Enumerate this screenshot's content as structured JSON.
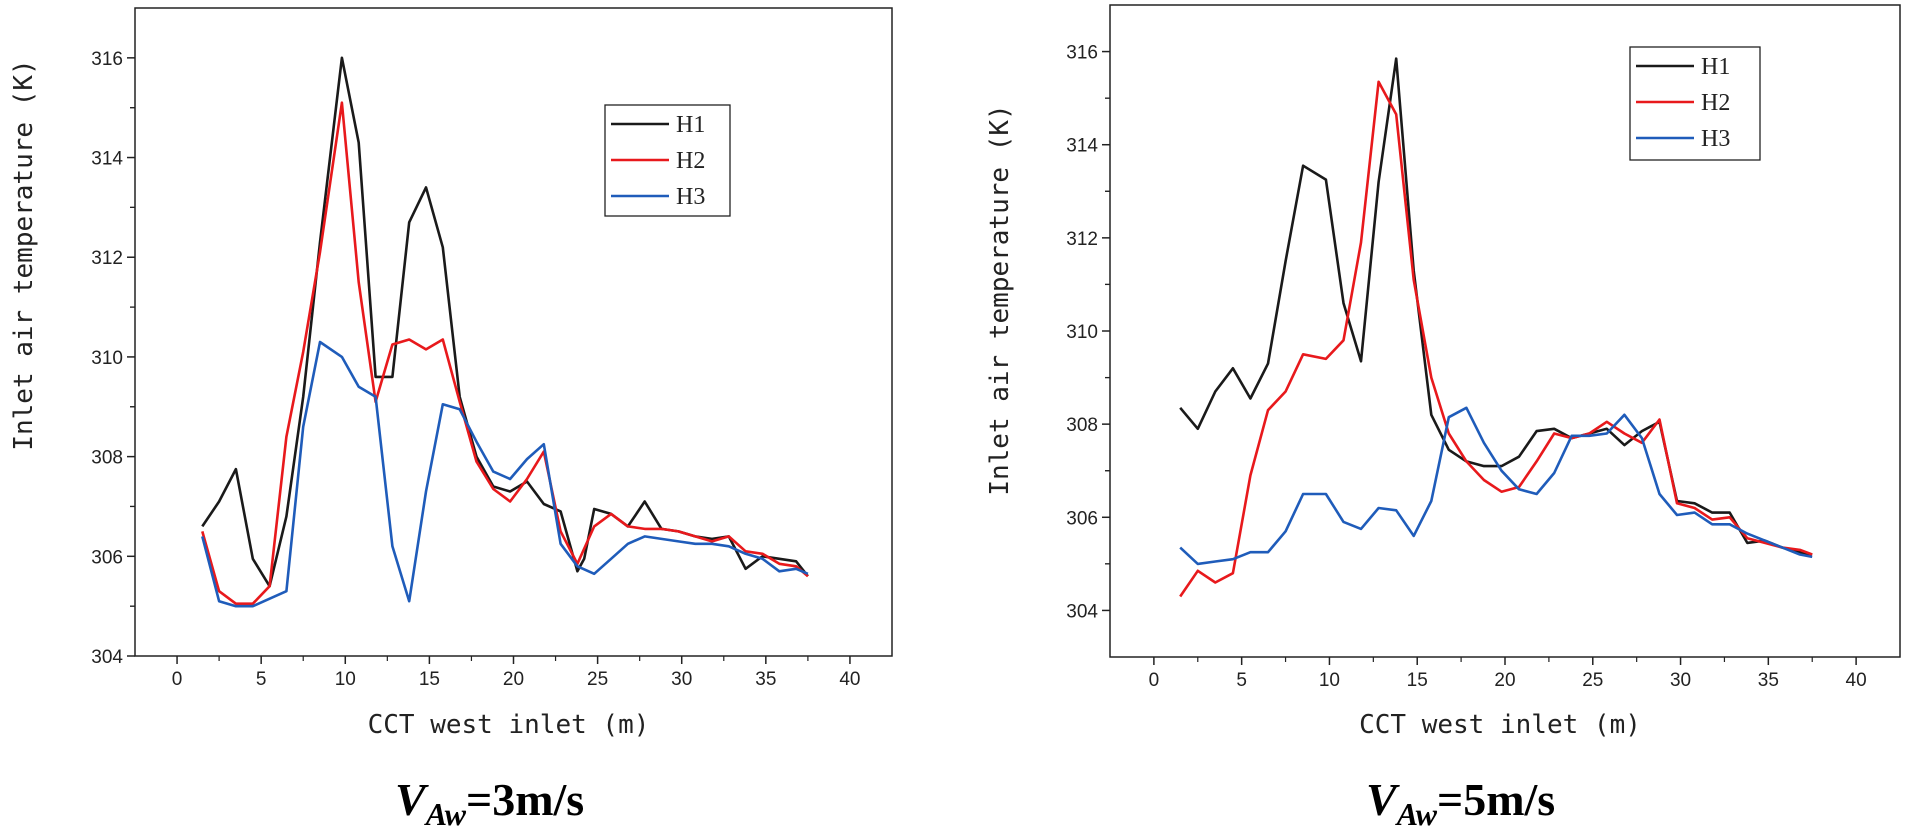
{
  "chart_data": [
    {
      "type": "line",
      "caption": {
        "var": "V",
        "sub": "Aw",
        "value": "=3m/s"
      },
      "xlabel": "CCT west inlet (m)",
      "ylabel": "Inlet air temperature (K)",
      "xlim": [
        -2.5,
        42.5
      ],
      "ylim": [
        304,
        317
      ],
      "xticks": [
        0,
        5,
        10,
        15,
        20,
        25,
        30,
        35,
        40
      ],
      "yticks": [
        304,
        306,
        308,
        310,
        312,
        314,
        316
      ],
      "legend_position": "top-right",
      "series": [
        {
          "name": "H1",
          "color": "#1a1a1a",
          "x": [
            1.5,
            2.5,
            3.5,
            4.5,
            5.5,
            6.5,
            7.5,
            8.5,
            9.8,
            10.8,
            11.8,
            12.8,
            13.8,
            14.8,
            15.8,
            16.8,
            17.8,
            18.8,
            19.8,
            20.8,
            21.8,
            22.8,
            23.8,
            24.2,
            24.8,
            25.8,
            26.8,
            27.8,
            28.8,
            29.8,
            30.8,
            31.8,
            32.8,
            33.8,
            34.8,
            35.8,
            36.8,
            37.5
          ],
          "values": [
            306.6,
            307.1,
            307.75,
            305.95,
            305.4,
            306.8,
            309.2,
            312.3,
            316.0,
            314.3,
            309.6,
            309.6,
            312.7,
            313.4,
            312.2,
            309.2,
            308.0,
            307.4,
            307.3,
            307.5,
            307.05,
            306.9,
            305.7,
            305.95,
            306.95,
            306.85,
            306.6,
            307.1,
            306.55,
            306.5,
            306.4,
            306.35,
            306.4,
            305.75,
            306.0,
            305.95,
            305.9,
            305.6
          ]
        },
        {
          "name": "H2",
          "color": "#e8191c",
          "x": [
            1.5,
            2.5,
            3.5,
            4.5,
            5.5,
            6.5,
            7.5,
            8.5,
            9.8,
            10.8,
            11.8,
            12.8,
            13.8,
            14.8,
            15.8,
            16.8,
            17.8,
            18.8,
            19.8,
            20.8,
            21.8,
            22.8,
            23.8,
            24.8,
            25.8,
            26.8,
            27.8,
            28.8,
            29.8,
            30.8,
            31.8,
            32.8,
            33.8,
            34.8,
            35.8,
            36.8,
            37.5
          ],
          "values": [
            306.5,
            305.3,
            305.05,
            305.05,
            305.4,
            308.4,
            310.1,
            312.1,
            315.1,
            311.5,
            309.1,
            310.25,
            310.35,
            310.15,
            310.35,
            309.1,
            307.9,
            307.35,
            307.1,
            307.55,
            308.1,
            306.5,
            305.85,
            306.6,
            306.85,
            306.6,
            306.55,
            306.55,
            306.5,
            306.4,
            306.3,
            306.4,
            306.1,
            306.05,
            305.85,
            305.8,
            305.6
          ]
        },
        {
          "name": "H3",
          "color": "#1f5cba",
          "x": [
            1.5,
            2.5,
            3.5,
            4.5,
            5.5,
            6.5,
            7.5,
            8.5,
            9.8,
            10.8,
            11.8,
            12.8,
            13.8,
            14.8,
            15.8,
            16.8,
            17.8,
            18.8,
            19.8,
            20.8,
            21.8,
            22.8,
            23.8,
            24.8,
            25.8,
            26.8,
            27.8,
            28.8,
            29.8,
            30.8,
            31.8,
            32.8,
            33.8,
            34.8,
            35.8,
            36.8,
            37.5
          ],
          "values": [
            306.4,
            305.1,
            305.0,
            305.0,
            305.15,
            305.3,
            308.6,
            310.3,
            310.0,
            309.4,
            309.2,
            306.2,
            305.1,
            307.3,
            309.05,
            308.95,
            308.3,
            307.7,
            307.55,
            307.95,
            308.25,
            306.25,
            305.8,
            305.65,
            305.95,
            306.25,
            306.4,
            306.35,
            306.3,
            306.25,
            306.25,
            306.2,
            306.05,
            305.95,
            305.7,
            305.75,
            305.65
          ]
        }
      ]
    },
    {
      "type": "line",
      "caption": {
        "var": "V",
        "sub": "Aw",
        "value": "=5m/s"
      },
      "xlabel": "CCT west inlet (m)",
      "ylabel": "Inlet air temperature (K)",
      "xlim": [
        -2.5,
        42.5
      ],
      "ylim": [
        303,
        317
      ],
      "xticks": [
        0,
        5,
        10,
        15,
        20,
        25,
        30,
        35,
        40
      ],
      "yticks": [
        304,
        306,
        308,
        310,
        312,
        314,
        316
      ],
      "legend_position": "top-right",
      "series": [
        {
          "name": "H1",
          "color": "#1a1a1a",
          "x": [
            1.5,
            2.5,
            3.5,
            4.5,
            5.5,
            6.5,
            7.5,
            8.5,
            9.8,
            10.8,
            11.8,
            12.8,
            13.8,
            14.8,
            15.8,
            16.8,
            17.8,
            18.8,
            19.8,
            20.8,
            21.8,
            22.8,
            23.8,
            24.8,
            25.8,
            26.8,
            27.8,
            28.8,
            29.8,
            30.8,
            31.8,
            32.8,
            33.8,
            34.8,
            35.8,
            36.8,
            37.5
          ],
          "values": [
            308.35,
            307.9,
            308.7,
            309.2,
            308.55,
            309.3,
            311.5,
            313.55,
            313.25,
            310.6,
            309.35,
            313.2,
            315.85,
            311.3,
            308.2,
            307.45,
            307.2,
            307.1,
            307.1,
            307.3,
            307.85,
            307.9,
            307.7,
            307.8,
            307.9,
            307.55,
            307.85,
            308.05,
            306.35,
            306.3,
            306.1,
            306.1,
            305.45,
            305.5,
            305.35,
            305.25,
            305.2
          ]
        },
        {
          "name": "H2",
          "color": "#e8191c",
          "x": [
            1.5,
            2.5,
            3.5,
            4.5,
            5.5,
            6.5,
            7.5,
            8.5,
            9.8,
            10.8,
            11.8,
            12.8,
            13.8,
            14.8,
            15.8,
            16.8,
            17.8,
            18.8,
            19.8,
            20.8,
            21.8,
            22.8,
            23.8,
            24.8,
            25.8,
            26.8,
            27.8,
            28.8,
            29.8,
            30.8,
            31.8,
            32.8,
            33.8,
            34.8,
            35.8,
            36.8,
            37.5
          ],
          "values": [
            304.3,
            304.85,
            304.6,
            304.8,
            306.9,
            308.3,
            308.7,
            309.5,
            309.4,
            309.8,
            311.9,
            315.35,
            314.65,
            311.1,
            309.0,
            307.8,
            307.2,
            306.8,
            306.55,
            306.65,
            307.2,
            307.8,
            307.7,
            307.8,
            308.05,
            307.8,
            307.6,
            308.1,
            306.3,
            306.2,
            305.95,
            306.0,
            305.55,
            305.45,
            305.35,
            305.3,
            305.2
          ]
        },
        {
          "name": "H3",
          "color": "#1f5cba",
          "x": [
            1.5,
            2.5,
            3.5,
            4.5,
            5.5,
            6.5,
            7.5,
            8.5,
            9.8,
            10.8,
            11.8,
            12.8,
            13.8,
            14.8,
            15.8,
            16.8,
            17.8,
            18.8,
            19.8,
            20.8,
            21.8,
            22.8,
            23.8,
            24.8,
            25.8,
            26.8,
            27.8,
            28.8,
            29.8,
            30.8,
            31.8,
            32.8,
            33.8,
            34.8,
            35.8,
            36.8,
            37.5
          ],
          "values": [
            305.35,
            305.0,
            305.05,
            305.1,
            305.25,
            305.25,
            305.7,
            306.5,
            306.5,
            305.9,
            305.75,
            306.2,
            306.15,
            305.6,
            306.35,
            308.15,
            308.35,
            307.6,
            307.0,
            306.6,
            306.5,
            306.95,
            307.75,
            307.75,
            307.8,
            308.2,
            307.7,
            306.5,
            306.05,
            306.1,
            305.85,
            305.85,
            305.65,
            305.5,
            305.35,
            305.2,
            305.15
          ]
        }
      ]
    }
  ]
}
